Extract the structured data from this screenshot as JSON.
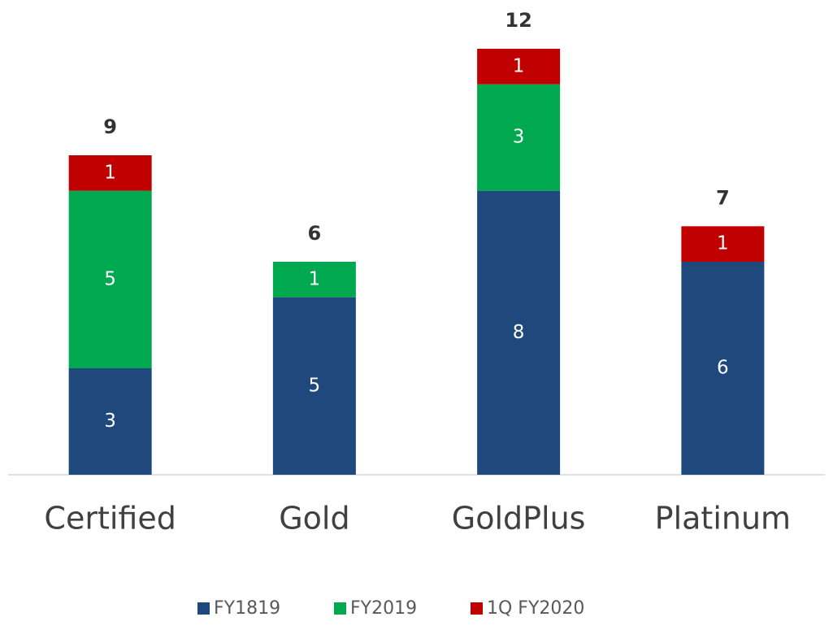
{
  "chart_data": {
    "type": "stacked_bar",
    "categories": [
      "Certified",
      "Gold",
      "GoldPlus",
      "Platinum"
    ],
    "series": [
      {
        "name": "FY1819",
        "color": "#1f497d",
        "values": [
          3,
          5,
          8,
          6
        ]
      },
      {
        "name": "FY2019",
        "color": "#00a84f",
        "values": [
          5,
          1,
          3,
          null
        ]
      },
      {
        "name": "1Q FY2020",
        "color": "#c00000",
        "values": [
          1,
          null,
          1,
          1
        ]
      }
    ],
    "totals": [
      9,
      6,
      12,
      7
    ],
    "ylim": [
      0,
      12
    ],
    "legend": "bottom"
  }
}
